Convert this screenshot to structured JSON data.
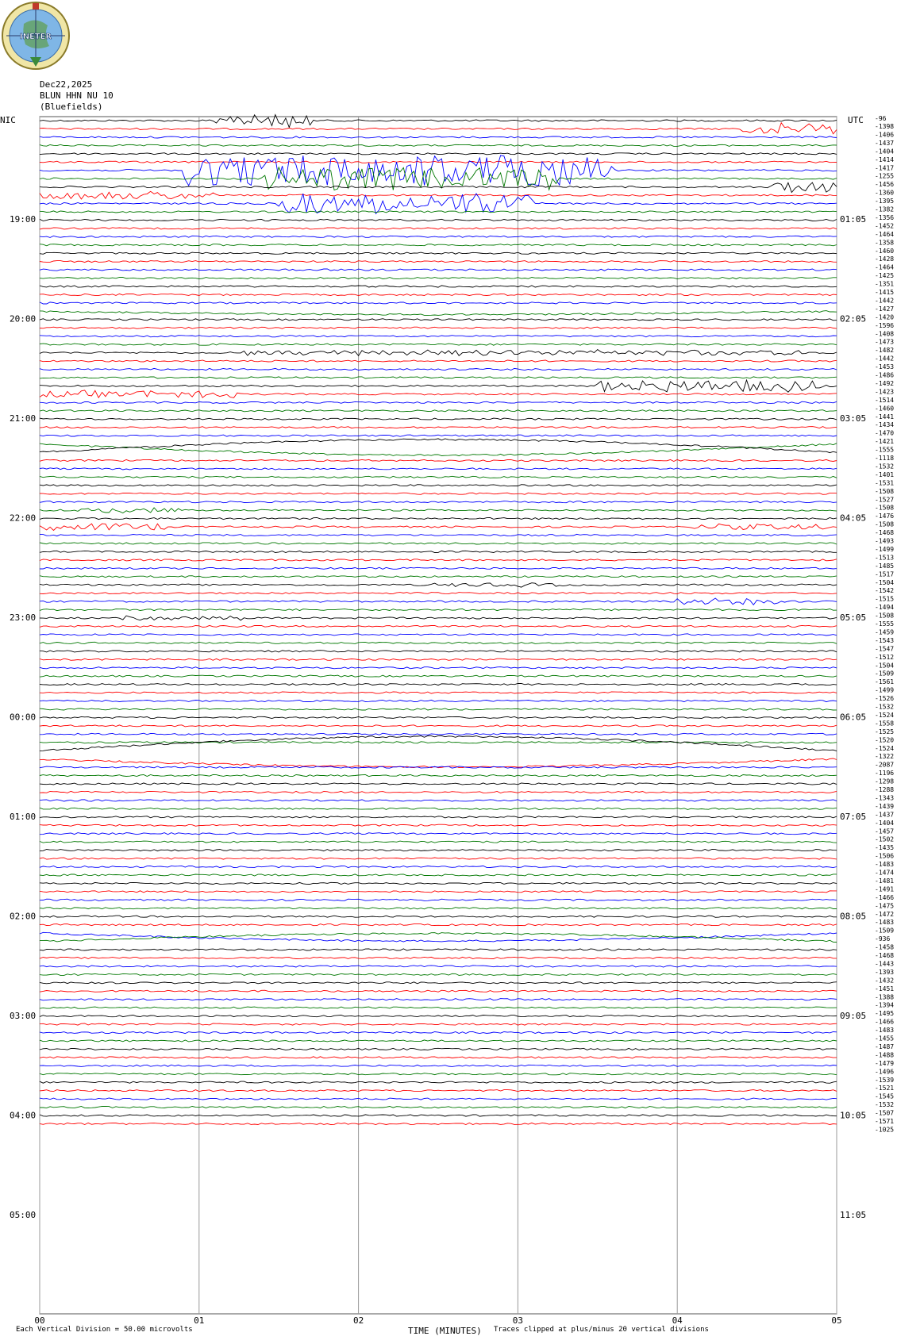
{
  "logo": {
    "text": "INETER",
    "icon": "ineter-globe-logo"
  },
  "header": {
    "date": "Dec22,2025",
    "station": "BLUN HHN NU 10",
    "location": "(Bluefields)"
  },
  "axis": {
    "left_tz": "NIC",
    "right_tz": "UTC",
    "xlabel": "TIME (MINUTES)",
    "x_ticks": [
      "00",
      "01",
      "02",
      "03",
      "04",
      "05"
    ],
    "left_hours": [
      "19:00",
      "20:00",
      "21:00",
      "22:00",
      "23:00",
      "00:00",
      "01:00",
      "02:00",
      "03:00",
      "04:00",
      "05:00"
    ],
    "right_hours": [
      "01:05",
      "02:05",
      "03:05",
      "04:05",
      "05:05",
      "06:05",
      "07:05",
      "08:05",
      "09:05",
      "10:05",
      "11:05"
    ]
  },
  "footer": {
    "scale_label": "Each Vertical Division =",
    "scale_value": "50.00 microvolts",
    "clip_note": "Traces clipped at plus/minus 20 vertical divisions"
  },
  "colors": [
    "#000000",
    "#ff0000",
    "#0000ff",
    "#007700"
  ],
  "chart_data": {
    "type": "line",
    "xlabel": "TIME (MINUTES)",
    "xlim": [
      0,
      5
    ],
    "trace_offsets": [
      -1398,
      -1406,
      -1437,
      -1404,
      -1414,
      -1417,
      -1255,
      -1456,
      -1360,
      -1395,
      -1382,
      -1356,
      -1452,
      -1464,
      -1358,
      -1460,
      -1428,
      -1464,
      -1425,
      -1351,
      -1415,
      -1442,
      -1427,
      -1420,
      -1596,
      -1408,
      -1473,
      -1482,
      -1442,
      -1453,
      -1486,
      -1492,
      -1423,
      -1514,
      -1460,
      -1441,
      -1434,
      -1470,
      -1421,
      -1555,
      -1118,
      -1532,
      -1401,
      -1531,
      -1508,
      -1527,
      -1508,
      -1476,
      -1508,
      -1468,
      -1493,
      -1499,
      -1513,
      -1485,
      -1517,
      -1504,
      -1542,
      -1515,
      -1494,
      -1508,
      -1555,
      -1459,
      -1543,
      -1547,
      -1512,
      -1504,
      -1509,
      -1561,
      -1499,
      -1526,
      -1532,
      -1524,
      -1558,
      -1525,
      -1520,
      -1524,
      -1322,
      -2087,
      -1196,
      -1298,
      -1288,
      -1343,
      -1439,
      -1437,
      -1404,
      -1457,
      -1502,
      -1435,
      -1506,
      -1483,
      -1474,
      -1481,
      -1491,
      -1466,
      -1475,
      -1472,
      -1483,
      -1509,
      -936,
      -1458,
      -1468,
      -1443,
      -1393,
      -1432,
      -1451,
      -1388,
      -1394,
      -1495,
      -1466,
      -1483,
      -1455,
      -1487,
      -1488,
      -1479,
      -1496,
      -1539,
      -1521,
      -1545,
      -1532,
      -1507,
      -1571,
      -1025
    ],
    "top_label": "-96"
  }
}
